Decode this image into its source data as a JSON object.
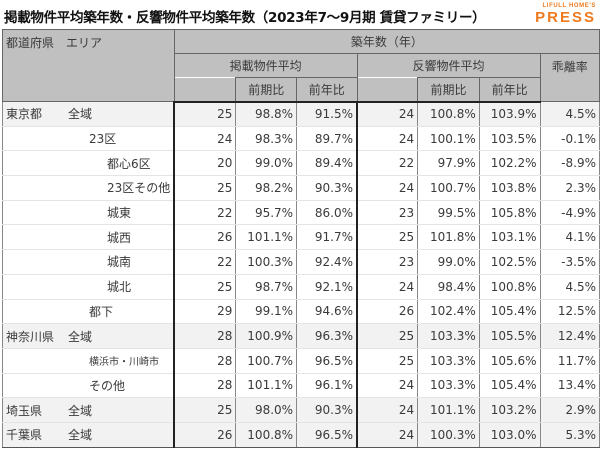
{
  "title": "掲載物件平均築年数・反響物件平均築年数（2023年7〜9月期 賃貸ファミリー）",
  "brand": {
    "top": "LIFULL HOME'S",
    "bottom": "PRESS",
    "color": "#ef7a1e"
  },
  "header": {
    "pref_area": "都道府県　エリア",
    "group": "築年数（年）",
    "listed": "掲載物件平均",
    "response": "反響物件平均",
    "divergence": "乖離率",
    "qoq": "前期比",
    "yoy": "前年比"
  },
  "rows": [
    {
      "pref": "東京都",
      "area": "全域",
      "l": "25",
      "lq": "98.8%",
      "ly": "91.5%",
      "r": "24",
      "rq": "100.8%",
      "ry": "103.9%",
      "d": "4.5%"
    },
    {
      "pref": "",
      "area": "23区",
      "l": "24",
      "lq": "98.3%",
      "ly": "89.7%",
      "r": "24",
      "rq": "100.1%",
      "ry": "103.5%",
      "d": "-0.1%"
    },
    {
      "pref": "",
      "area": "都心6区",
      "l": "20",
      "lq": "99.0%",
      "ly": "89.4%",
      "r": "22",
      "rq": "97.9%",
      "ry": "102.2%",
      "d": "-8.9%"
    },
    {
      "pref": "",
      "area": "23区その他",
      "l": "25",
      "lq": "98.2%",
      "ly": "90.3%",
      "r": "24",
      "rq": "100.7%",
      "ry": "103.8%",
      "d": "2.3%"
    },
    {
      "pref": "",
      "area": "城東",
      "l": "22",
      "lq": "95.7%",
      "ly": "86.0%",
      "r": "23",
      "rq": "99.5%",
      "ry": "105.8%",
      "d": "-4.9%"
    },
    {
      "pref": "",
      "area": "城西",
      "l": "26",
      "lq": "101.1%",
      "ly": "91.7%",
      "r": "25",
      "rq": "101.8%",
      "ry": "103.1%",
      "d": "4.1%"
    },
    {
      "pref": "",
      "area": "城南",
      "l": "22",
      "lq": "100.3%",
      "ly": "92.4%",
      "r": "23",
      "rq": "99.0%",
      "ry": "102.5%",
      "d": "-3.5%"
    },
    {
      "pref": "",
      "area": "城北",
      "l": "25",
      "lq": "98.7%",
      "ly": "92.1%",
      "r": "24",
      "rq": "98.4%",
      "ry": "100.8%",
      "d": "4.5%"
    },
    {
      "pref": "",
      "area": "都下",
      "l": "29",
      "lq": "99.1%",
      "ly": "94.6%",
      "r": "26",
      "rq": "102.4%",
      "ry": "105.4%",
      "d": "12.5%"
    },
    {
      "pref": "神奈川県",
      "area": "全域",
      "l": "28",
      "lq": "100.9%",
      "ly": "96.3%",
      "r": "25",
      "rq": "103.3%",
      "ry": "105.5%",
      "d": "12.4%"
    },
    {
      "pref": "",
      "area": "横浜市・川崎市",
      "l": "28",
      "lq": "100.7%",
      "ly": "96.5%",
      "r": "25",
      "rq": "103.3%",
      "ry": "105.6%",
      "d": "11.7%"
    },
    {
      "pref": "",
      "area": "その他",
      "l": "28",
      "lq": "101.1%",
      "ly": "96.1%",
      "r": "24",
      "rq": "103.3%",
      "ry": "105.4%",
      "d": "13.4%"
    },
    {
      "pref": "埼玉県",
      "area": "全域",
      "l": "25",
      "lq": "98.0%",
      "ly": "90.3%",
      "r": "24",
      "rq": "101.1%",
      "ry": "103.2%",
      "d": "2.9%"
    },
    {
      "pref": "千葉県",
      "area": "全域",
      "l": "26",
      "lq": "100.8%",
      "ly": "96.5%",
      "r": "24",
      "rq": "100.3%",
      "ry": "103.0%",
      "d": "5.3%"
    }
  ]
}
